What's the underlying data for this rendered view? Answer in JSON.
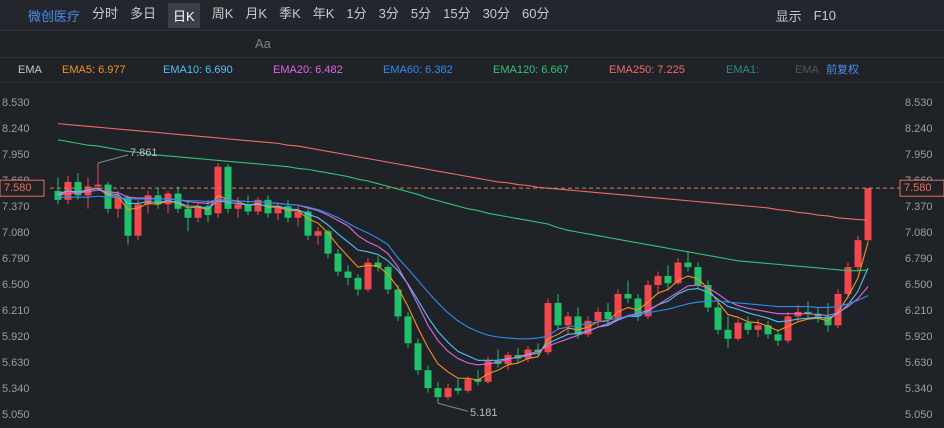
{
  "header": {
    "stock": "微创医疗",
    "periods": [
      "分时",
      "多日",
      "日K",
      "周K",
      "月K",
      "季K",
      "年K",
      "1分",
      "3分",
      "5分",
      "15分",
      "30分",
      "60分"
    ],
    "display": "显示",
    "f10": "F10"
  },
  "tools": {
    "font": "Aa"
  },
  "indicator": {
    "name": "EMA",
    "extra": [
      "EMA1:",
      "EMA"
    ],
    "adjust": "前复权"
  },
  "chart_data": {
    "type": "candlestick",
    "up_color": "#f0484e",
    "down_color": "#1fc26b",
    "ylim": [
      4.905,
      8.731
    ],
    "yticks": [
      {
        "value": 5.05,
        "label": "5.050"
      },
      {
        "value": 5.34,
        "label": "5.340"
      },
      {
        "value": 5.63,
        "label": "5.630"
      },
      {
        "value": 5.92,
        "label": "5.920"
      },
      {
        "value": 6.21,
        "label": "6.210"
      },
      {
        "value": 6.5,
        "label": "6.500"
      },
      {
        "value": 6.79,
        "label": "6.790"
      },
      {
        "value": 7.08,
        "label": "7.080"
      },
      {
        "value": 7.37,
        "label": "7.370"
      },
      {
        "value": 7.66,
        "label": "7.660"
      },
      {
        "value": 7.95,
        "label": "7.950"
      },
      {
        "value": 8.24,
        "label": "8.240"
      },
      {
        "value": 8.53,
        "label": "8.530"
      }
    ],
    "grid": false,
    "current_price": {
      "value": 7.58,
      "label": "7.580"
    },
    "annotations": [
      {
        "index": 4,
        "value": 7.861,
        "label": "7.861"
      },
      {
        "index": 38,
        "value": 5.181,
        "label": "5.181"
      }
    ],
    "open": [
      7.55,
      7.45,
      7.65,
      7.5,
      7.6,
      7.62,
      7.35,
      7.48,
      7.05,
      7.4,
      7.5,
      7.4,
      7.52,
      7.35,
      7.25,
      7.38,
      7.3,
      7.82,
      7.35,
      7.4,
      7.32,
      7.45,
      7.3,
      7.38,
      7.25,
      7.32,
      7.05,
      7.1,
      6.85,
      6.65,
      6.58,
      6.45,
      6.75,
      6.7,
      6.45,
      6.15,
      5.85,
      5.55,
      5.35,
      5.25,
      5.35,
      5.32,
      5.45,
      5.42,
      5.65,
      5.62,
      5.72,
      5.68,
      5.78,
      5.75,
      6.3,
      6.05,
      6.15,
      5.95,
      6.1,
      6.2,
      6.12,
      6.4,
      6.35,
      6.15,
      6.5,
      6.6,
      6.52,
      6.75,
      6.7,
      6.5,
      6.25,
      6.0,
      5.9,
      6.08,
      6.0,
      6.05,
      5.95,
      5.88,
      6.15,
      6.2,
      6.18,
      6.15,
      6.05,
      6.4,
      6.7,
      7.0
    ],
    "high": [
      7.7,
      7.72,
      7.75,
      7.7,
      7.861,
      7.65,
      7.55,
      7.5,
      7.45,
      7.55,
      7.58,
      7.55,
      7.6,
      7.45,
      7.42,
      7.45,
      7.86,
      7.85,
      7.48,
      7.5,
      7.48,
      7.5,
      7.42,
      7.45,
      7.38,
      7.35,
      7.15,
      7.12,
      6.9,
      6.72,
      6.62,
      6.8,
      6.82,
      6.72,
      6.5,
      6.2,
      5.9,
      5.6,
      5.42,
      5.4,
      5.45,
      5.48,
      5.55,
      5.7,
      5.78,
      5.75,
      5.8,
      5.82,
      5.85,
      6.35,
      6.4,
      6.2,
      6.25,
      6.15,
      6.25,
      6.3,
      6.45,
      6.55,
      6.4,
      6.55,
      6.65,
      6.72,
      6.8,
      6.88,
      6.75,
      6.55,
      6.3,
      6.15,
      6.12,
      6.15,
      6.12,
      6.1,
      6.0,
      6.2,
      6.28,
      6.32,
      6.25,
      6.3,
      6.45,
      6.75,
      7.05,
      7.58
    ],
    "low": [
      7.4,
      7.4,
      7.45,
      7.35,
      7.55,
      7.3,
      7.25,
      6.95,
      7.0,
      7.3,
      7.35,
      7.3,
      7.3,
      7.1,
      7.2,
      7.2,
      7.25,
      7.3,
      7.25,
      7.28,
      7.28,
      7.25,
      7.22,
      7.2,
      7.15,
      7.0,
      6.95,
      6.8,
      6.6,
      6.5,
      6.38,
      6.42,
      6.65,
      6.4,
      6.1,
      5.8,
      5.5,
      5.3,
      5.181,
      5.22,
      5.28,
      5.3,
      5.38,
      5.4,
      5.58,
      5.55,
      5.62,
      5.64,
      5.7,
      5.72,
      6.0,
      5.95,
      5.9,
      5.92,
      6.02,
      6.05,
      6.1,
      6.3,
      6.1,
      6.12,
      6.4,
      6.45,
      6.5,
      6.65,
      6.45,
      6.2,
      5.95,
      5.8,
      5.88,
      5.95,
      5.92,
      5.9,
      5.82,
      5.85,
      6.1,
      6.12,
      6.08,
      5.98,
      6.02,
      6.35,
      6.65,
      6.98
    ],
    "close": [
      7.45,
      7.65,
      7.5,
      7.6,
      7.62,
      7.35,
      7.48,
      7.05,
      7.4,
      7.5,
      7.4,
      7.52,
      7.35,
      7.25,
      7.38,
      7.28,
      7.82,
      7.35,
      7.4,
      7.32,
      7.45,
      7.3,
      7.38,
      7.25,
      7.32,
      7.05,
      7.1,
      6.85,
      6.65,
      6.58,
      6.45,
      6.75,
      6.7,
      6.45,
      6.15,
      5.85,
      5.55,
      5.35,
      5.25,
      5.35,
      5.32,
      5.45,
      5.42,
      5.65,
      5.62,
      5.72,
      5.68,
      5.78,
      5.75,
      6.3,
      6.05,
      6.15,
      5.95,
      6.1,
      6.2,
      6.12,
      6.4,
      6.35,
      6.15,
      6.5,
      6.6,
      6.52,
      6.75,
      6.7,
      6.5,
      6.25,
      6.0,
      5.9,
      6.08,
      6.0,
      6.05,
      5.95,
      5.88,
      6.15,
      6.2,
      6.18,
      6.15,
      6.05,
      6.4,
      6.7,
      7.0,
      7.58
    ],
    "series": [
      {
        "name": "EMA5",
        "legend_label": "EMA5: 6.977",
        "color": "#f7931e",
        "values": [
          7.5,
          7.55,
          7.53,
          7.56,
          7.58,
          7.5,
          7.49,
          7.34,
          7.36,
          7.41,
          7.4,
          7.44,
          7.41,
          7.36,
          7.37,
          7.34,
          7.5,
          7.45,
          7.43,
          7.39,
          7.41,
          7.37,
          7.37,
          7.33,
          7.33,
          7.24,
          7.19,
          7.08,
          6.94,
          6.82,
          6.7,
          6.72,
          6.71,
          6.62,
          6.47,
          6.26,
          6.02,
          5.8,
          5.62,
          5.53,
          5.46,
          5.46,
          5.44,
          5.51,
          5.55,
          5.61,
          5.63,
          5.68,
          5.7,
          5.9,
          5.95,
          6.02,
          6.0,
          6.03,
          6.09,
          6.1,
          6.2,
          6.25,
          6.22,
          6.31,
          6.41,
          6.45,
          6.55,
          6.6,
          6.57,
          6.46,
          6.31,
          6.17,
          6.14,
          6.09,
          6.08,
          6.04,
          5.99,
          6.04,
          6.09,
          6.12,
          6.13,
          6.1,
          6.2,
          6.37,
          6.58,
          6.977
        ]
      },
      {
        "name": "EMA10",
        "legend_label": "EMA10: 6.690",
        "color": "#4fc3f7",
        "values": [
          7.52,
          7.55,
          7.54,
          7.56,
          7.58,
          7.52,
          7.51,
          7.41,
          7.41,
          7.43,
          7.42,
          7.44,
          7.42,
          7.38,
          7.38,
          7.35,
          7.44,
          7.42,
          7.41,
          7.39,
          7.4,
          7.38,
          7.38,
          7.35,
          7.34,
          7.29,
          7.25,
          7.17,
          7.07,
          6.98,
          6.89,
          6.87,
          6.84,
          6.77,
          6.66,
          6.51,
          6.33,
          6.14,
          5.98,
          5.86,
          5.76,
          5.71,
          5.66,
          5.66,
          5.66,
          5.68,
          5.69,
          5.72,
          5.74,
          5.85,
          5.9,
          5.95,
          5.96,
          5.99,
          6.03,
          6.05,
          6.11,
          6.15,
          6.15,
          6.21,
          6.28,
          6.32,
          6.4,
          6.45,
          6.46,
          6.42,
          6.34,
          6.26,
          6.23,
          6.19,
          6.16,
          6.13,
          6.09,
          6.1,
          6.12,
          6.13,
          6.14,
          6.13,
          6.18,
          6.28,
          6.43,
          6.69
        ]
      },
      {
        "name": "EMA20",
        "legend_label": "EMA20: 6.482",
        "color": "#e066e0",
        "values": [
          7.5,
          7.52,
          7.53,
          7.54,
          7.56,
          7.54,
          7.53,
          7.48,
          7.47,
          7.47,
          7.46,
          7.46,
          7.45,
          7.43,
          7.42,
          7.41,
          7.45,
          7.44,
          7.44,
          7.43,
          7.43,
          7.42,
          7.41,
          7.4,
          7.39,
          7.36,
          7.33,
          7.28,
          7.22,
          7.16,
          7.05,
          6.98,
          6.93,
          6.85,
          6.7,
          6.5,
          6.28,
          6.05,
          5.88,
          5.76,
          5.68,
          5.63,
          5.61,
          5.62,
          5.64,
          5.67,
          5.7,
          5.73,
          5.76,
          5.82,
          5.86,
          5.9,
          5.94,
          5.98,
          6.03,
          6.07,
          6.12,
          6.16,
          6.18,
          6.22,
          6.28,
          6.35,
          6.42,
          6.49,
          6.5,
          6.47,
          6.4,
          6.32,
          6.27,
          6.24,
          6.22,
          6.2,
          6.18,
          6.18,
          6.18,
          6.18,
          6.17,
          6.16,
          6.19,
          6.26,
          6.35,
          6.482
        ]
      },
      {
        "name": "EMA60",
        "legend_label": "EMA60: 6.382",
        "color": "#2f8cf0",
        "values": [
          7.48,
          7.48,
          7.48,
          7.48,
          7.49,
          7.48,
          7.48,
          7.46,
          7.46,
          7.46,
          7.46,
          7.46,
          7.45,
          7.44,
          7.44,
          7.43,
          7.45,
          7.45,
          7.44,
          7.43,
          7.43,
          7.42,
          7.41,
          7.4,
          7.39,
          7.37,
          7.34,
          7.3,
          7.25,
          7.19,
          7.13,
          7.08,
          7.02,
          6.95,
          6.8,
          6.68,
          6.55,
          6.42,
          6.3,
          6.19,
          6.1,
          6.03,
          5.98,
          5.94,
          5.92,
          5.91,
          5.9,
          5.9,
          5.91,
          5.93,
          6.01,
          6.03,
          6.05,
          6.07,
          6.09,
          6.11,
          6.13,
          6.15,
          6.17,
          6.19,
          6.21,
          6.23,
          6.26,
          6.29,
          6.31,
          6.32,
          6.32,
          6.31,
          6.3,
          6.29,
          6.28,
          6.27,
          6.26,
          6.26,
          6.26,
          6.26,
          6.25,
          6.25,
          6.26,
          6.29,
          6.33,
          6.382
        ]
      },
      {
        "name": "EMA120",
        "legend_label": "EMA120: 6.667",
        "color": "#34c27a",
        "values": [
          8.12,
          8.1,
          8.08,
          8.06,
          8.05,
          8.03,
          8.01,
          7.99,
          7.98,
          7.96,
          7.95,
          7.94,
          7.93,
          7.92,
          7.91,
          7.9,
          7.89,
          7.88,
          7.87,
          7.86,
          7.85,
          7.84,
          7.83,
          7.82,
          7.8,
          7.79,
          7.77,
          7.75,
          7.73,
          7.71,
          7.68,
          7.66,
          7.63,
          7.6,
          7.57,
          7.54,
          7.51,
          7.47,
          7.44,
          7.41,
          7.38,
          7.35,
          7.33,
          7.3,
          7.28,
          7.26,
          7.24,
          7.22,
          7.2,
          7.18,
          7.14,
          7.11,
          7.09,
          7.07,
          7.05,
          7.03,
          7.01,
          6.99,
          6.97,
          6.95,
          6.93,
          6.91,
          6.89,
          6.87,
          6.85,
          6.83,
          6.81,
          6.79,
          6.77,
          6.76,
          6.75,
          6.74,
          6.73,
          6.72,
          6.71,
          6.7,
          6.69,
          6.68,
          6.67,
          6.66,
          6.66,
          6.667
        ]
      },
      {
        "name": "EMA250",
        "legend_label": "EMA250: 7.225",
        "color": "#f06a6a",
        "values": [
          8.3,
          8.29,
          8.28,
          8.27,
          8.26,
          8.25,
          8.24,
          8.23,
          8.22,
          8.21,
          8.2,
          8.19,
          8.18,
          8.17,
          8.16,
          8.15,
          8.14,
          8.13,
          8.12,
          8.11,
          8.1,
          8.09,
          8.08,
          8.06,
          8.05,
          8.03,
          8.01,
          7.99,
          7.97,
          7.95,
          7.93,
          7.91,
          7.89,
          7.87,
          7.85,
          7.83,
          7.81,
          7.79,
          7.77,
          7.75,
          7.73,
          7.71,
          7.69,
          7.67,
          7.65,
          7.64,
          7.62,
          7.61,
          7.59,
          7.58,
          7.57,
          7.56,
          7.55,
          7.54,
          7.53,
          7.52,
          7.51,
          7.5,
          7.49,
          7.48,
          7.47,
          7.46,
          7.45,
          7.44,
          7.43,
          7.42,
          7.41,
          7.4,
          7.39,
          7.38,
          7.37,
          7.36,
          7.34,
          7.33,
          7.31,
          7.3,
          7.28,
          7.27,
          7.25,
          7.24,
          7.23,
          7.225
        ]
      }
    ]
  }
}
